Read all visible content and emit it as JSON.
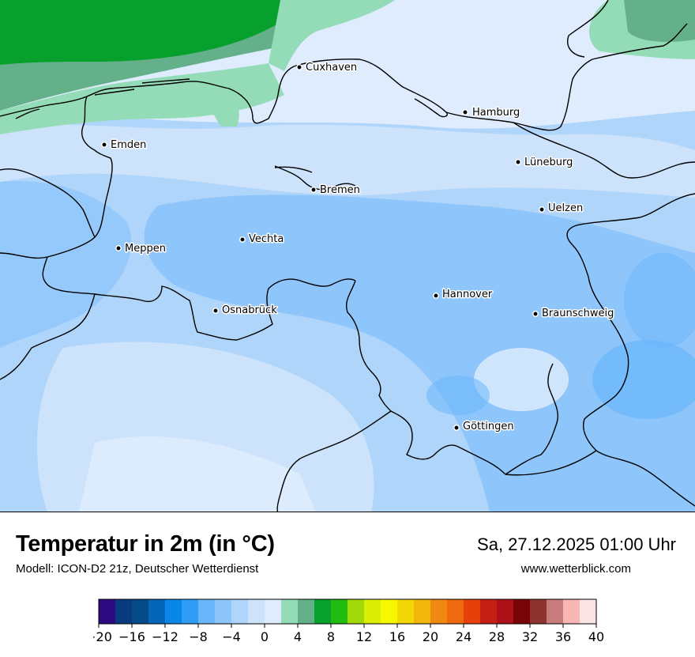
{
  "title": "Temperatur in 2m (in °C)",
  "subtitle": "Modell: ICON-D2 21z, Deutscher Wetterdienst",
  "datetime": "Sa, 27.12.2025 01:00 Uhr",
  "website": "www.wetterblick.com",
  "cities": [
    {
      "name": "Cuxhaven"
    },
    {
      "name": "Hamburg"
    },
    {
      "name": "Emden"
    },
    {
      "name": "Lüneburg"
    },
    {
      "name": "Bremen"
    },
    {
      "name": "Uelzen"
    },
    {
      "name": "Vechta"
    },
    {
      "name": "Meppen"
    },
    {
      "name": "Hannover"
    },
    {
      "name": "Osnabrück"
    },
    {
      "name": "Braunschweig"
    },
    {
      "name": "Göttingen"
    }
  ],
  "legend": {
    "min": -20,
    "max": 40,
    "step": 2,
    "tick_labels": [
      "−20",
      "−16",
      "−12",
      "−8",
      "−4",
      "0",
      "4",
      "8",
      "12",
      "16",
      "20",
      "24",
      "28",
      "32",
      "36",
      "40"
    ],
    "colors": [
      "#2d0a82",
      "#0a3a7e",
      "#064a8a",
      "#0565b8",
      "#0a86e8",
      "#2e9cf5",
      "#6ab6fb",
      "#8ec5fb",
      "#b0d5fb",
      "#cde3fc",
      "#dfecfd",
      "#94dcb7",
      "#64b08b",
      "#07a02c",
      "#22bb10",
      "#a2d908",
      "#d9ee03",
      "#f6f800",
      "#f3d707",
      "#f2b70c",
      "#f08811",
      "#ee6a0c",
      "#e8400b",
      "#c61f16",
      "#ad1218",
      "#7a0405",
      "#8f3331",
      "#c87b7a",
      "#f8b7b5",
      "#fde4e4"
    ]
  }
}
